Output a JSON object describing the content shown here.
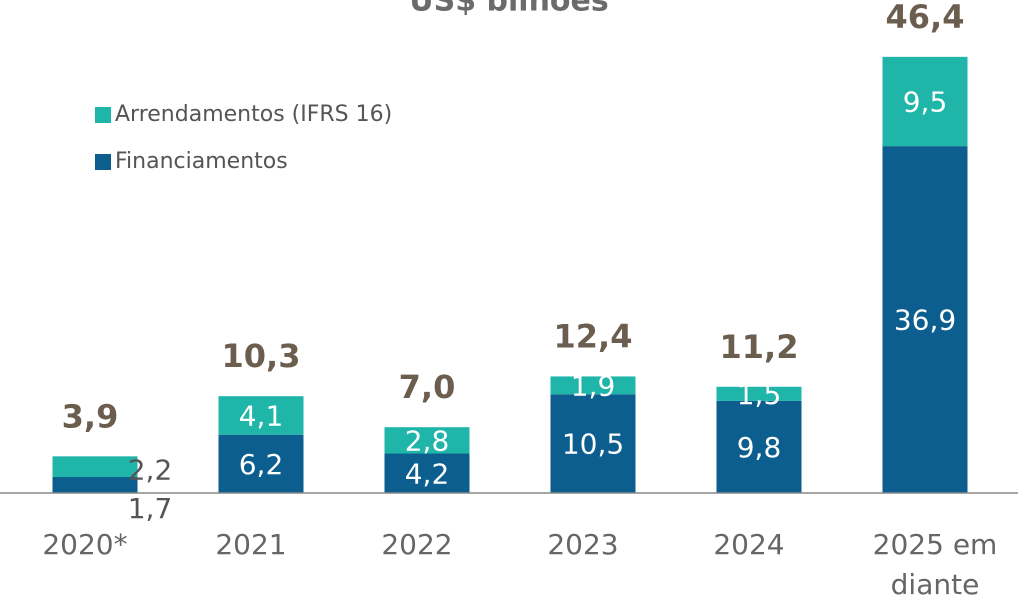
{
  "chart_data": {
    "type": "stacked_bar",
    "title": "US$ bilhões",
    "categories": [
      "2020*",
      "2021",
      "2022",
      "2023",
      "2024",
      "2025 em diante"
    ],
    "series": [
      {
        "name": "Financiamentos",
        "color": "#0b5e8e",
        "values": [
          1.7,
          6.2,
          4.2,
          10.5,
          9.8,
          36.9
        ],
        "value_labels": [
          "1,7",
          "6,2",
          "4,2",
          "10,5",
          "9,8",
          "36,9"
        ]
      },
      {
        "name": "Arrendamentos (IFRS 16)",
        "color": "#1fb5a8",
        "values": [
          2.2,
          4.1,
          2.8,
          1.9,
          1.5,
          9.5
        ],
        "value_labels": [
          "2,2",
          "4,1",
          "2,8",
          "1,9",
          "1,5",
          "9,5"
        ]
      }
    ],
    "totals": {
      "values": [
        3.9,
        10.3,
        7.0,
        12.4,
        11.2,
        46.4
      ],
      "value_labels": [
        "3,9",
        "10,3",
        "7,0",
        "12,4",
        "11,2",
        "46,4"
      ]
    },
    "ylim": [
      0,
      50
    ],
    "legend": "upper left"
  }
}
